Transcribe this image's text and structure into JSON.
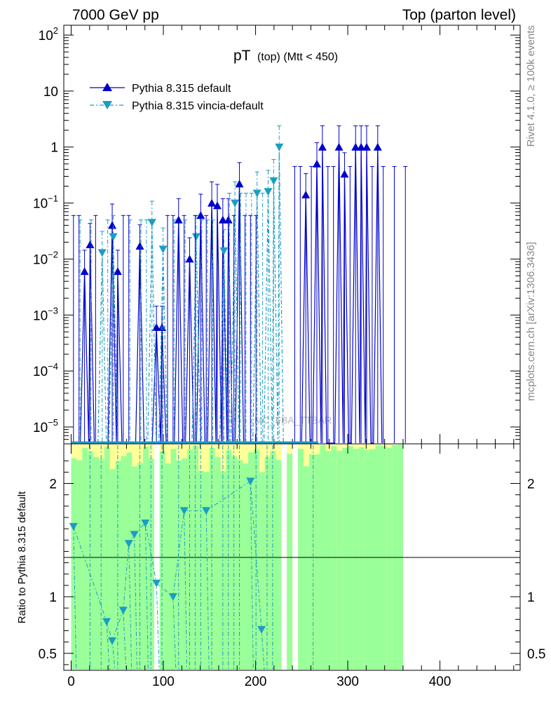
{
  "header": {
    "left": "7000 GeV pp",
    "right": "Top (parton level)"
  },
  "side_labels": {
    "rivet": "Rivet 4.1.0, ≥ 100k events",
    "mcplots": "mcplots.cern.ch [arXiv:1306.3436]"
  },
  "chart_data": {
    "type": "line",
    "title": "pT",
    "title_sub": "(top) (Mtt < 450)",
    "watermark": "MC_FBA_TTBAR",
    "xlabel": "",
    "ylabel_ratio": "Ratio to Pythia 8.315 default",
    "xlim": [
      -8,
      487
    ],
    "ylim": [
      5e-06,
      150
    ],
    "yscale": "log",
    "ratio_ylim": [
      0.35,
      2.35
    ],
    "x_ticks": [
      "0",
      "100",
      "200",
      "300",
      "400"
    ],
    "x_tick_values": [
      0,
      100,
      200,
      300,
      400
    ],
    "y_ticks": [
      {
        "value": 100,
        "base": "10",
        "exp": "2"
      },
      {
        "value": 10,
        "base": "10",
        "exp": ""
      },
      {
        "value": 1,
        "base": "1",
        "exp": ""
      },
      {
        "value": 0.1,
        "base": "10",
        "exp": "−1"
      },
      {
        "value": 0.01,
        "base": "10",
        "exp": "−2"
      },
      {
        "value": 0.001,
        "base": "10",
        "exp": "−3"
      },
      {
        "value": 0.0001,
        "base": "10",
        "exp": "−4"
      },
      {
        "value": 1e-05,
        "base": "10",
        "exp": "−5"
      }
    ],
    "ratio_ticks": [
      "0.5",
      "1",
      "2"
    ],
    "ratio_tick_values": [
      0.5,
      1,
      2
    ],
    "series": [
      {
        "name": "Pythia 8.315 default",
        "color": "#0000cc",
        "marker": "triangle-up",
        "dash": "",
        "points": [
          {
            "x": 14.5,
            "y": 0.006
          },
          {
            "x": 20.5,
            "y": 0.018
          },
          {
            "x": 44.5,
            "y": 0.04
          },
          {
            "x": 50.5,
            "y": 0.006
          },
          {
            "x": 74.5,
            "y": 0.017
          },
          {
            "x": 92.5,
            "y": 0.0006
          },
          {
            "x": 98.5,
            "y": 0.0006
          },
          {
            "x": 116.5,
            "y": 0.05
          },
          {
            "x": 128.5,
            "y": 0.01
          },
          {
            "x": 140.5,
            "y": 0.06
          },
          {
            "x": 152.5,
            "y": 0.1
          },
          {
            "x": 158.5,
            "y": 0.09
          },
          {
            "x": 164.5,
            "y": 0.05
          },
          {
            "x": 170.5,
            "y": 0.05
          },
          {
            "x": 182.5,
            "y": 0.22
          },
          {
            "x": 254.5,
            "y": 0.14
          },
          {
            "x": 266.5,
            "y": 0.5
          },
          {
            "x": 272.5,
            "y": 1.0
          },
          {
            "x": 290.5,
            "y": 1.0
          },
          {
            "x": 296.5,
            "y": 0.33
          },
          {
            "x": 308.5,
            "y": 1.0
          },
          {
            "x": 314.5,
            "y": 1.0
          },
          {
            "x": 320.5,
            "y": 1.0
          },
          {
            "x": 332.5,
            "y": 1.0
          }
        ]
      },
      {
        "name": "Pythia 8.315 vincia-default",
        "color": "#1a9ec2",
        "marker": "triangle-down",
        "dash": "6,3,2,3",
        "points": [
          {
            "x": 32.5,
            "y": 0.013
          },
          {
            "x": 44.5,
            "y": 0.025
          },
          {
            "x": 86.5,
            "y": 0.045
          },
          {
            "x": 98.5,
            "y": 0.015
          },
          {
            "x": 134.5,
            "y": 0.025
          },
          {
            "x": 164.5,
            "y": 0.014
          },
          {
            "x": 176.5,
            "y": 0.1
          },
          {
            "x": 200.5,
            "y": 0.15
          },
          {
            "x": 212.5,
            "y": 0.16
          },
          {
            "x": 218.5,
            "y": 0.25
          },
          {
            "x": 224.5,
            "y": 1.0
          }
        ]
      }
    ],
    "ratio_points": [
      {
        "x": 2.5,
        "y": 1.62
      },
      {
        "x": 38.5,
        "y": 0.78
      },
      {
        "x": 44.5,
        "y": 0.61
      },
      {
        "x": 56.5,
        "y": 0.88
      },
      {
        "x": 62.5,
        "y": 1.47
      },
      {
        "x": 68.5,
        "y": 1.55
      },
      {
        "x": 80.5,
        "y": 1.65
      },
      {
        "x": 92.5,
        "y": 1.12
      },
      {
        "x": 110.5,
        "y": 1.0
      },
      {
        "x": 122.5,
        "y": 1.76
      },
      {
        "x": 146.5,
        "y": 1.76
      },
      {
        "x": 194.5,
        "y": 2.02
      },
      {
        "x": 206.5,
        "y": 0.71
      }
    ]
  }
}
